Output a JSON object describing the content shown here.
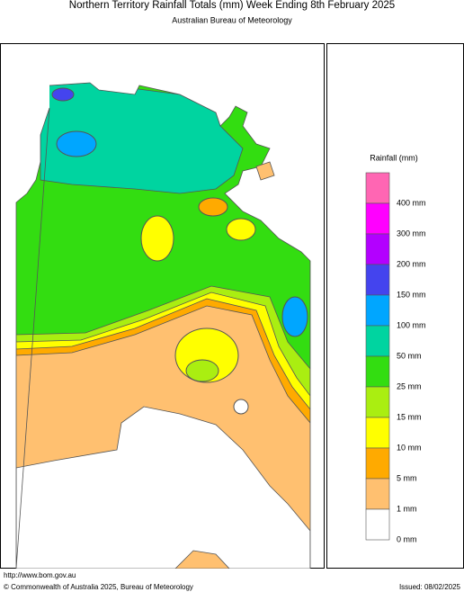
{
  "header": {
    "title": "Northern Territory Rainfall Totals (mm)  Week Ending 8th February 2025",
    "subtitle": "Australian Bureau of Meteorology"
  },
  "legend": {
    "title": "Rainfall (mm)",
    "items": [
      {
        "label": "400 mm",
        "color": "#ff66b3"
      },
      {
        "label": "300 mm",
        "color": "#ff00ff"
      },
      {
        "label": "200 mm",
        "color": "#b300ff"
      },
      {
        "label": "150 mm",
        "color": "#4444ee"
      },
      {
        "label": "100 mm",
        "color": "#00a6ff"
      },
      {
        "label": "50 mm",
        "color": "#00d4a0"
      },
      {
        "label": "25 mm",
        "color": "#33dd11"
      },
      {
        "label": "15 mm",
        "color": "#aaee11"
      },
      {
        "label": "10 mm",
        "color": "#ffff00"
      },
      {
        "label": "5 mm",
        "color": "#ffaa00"
      },
      {
        "label": "1 mm",
        "color": "#ffc070"
      },
      {
        "label": "0 mm",
        "color": "#ffffff"
      }
    ]
  },
  "footer": {
    "url": "http://www.bom.gov.au",
    "copyright": "© Commonwealth of Australia 2025, Bureau of Meteorology",
    "issued": "Issued: 08/02/2025"
  }
}
